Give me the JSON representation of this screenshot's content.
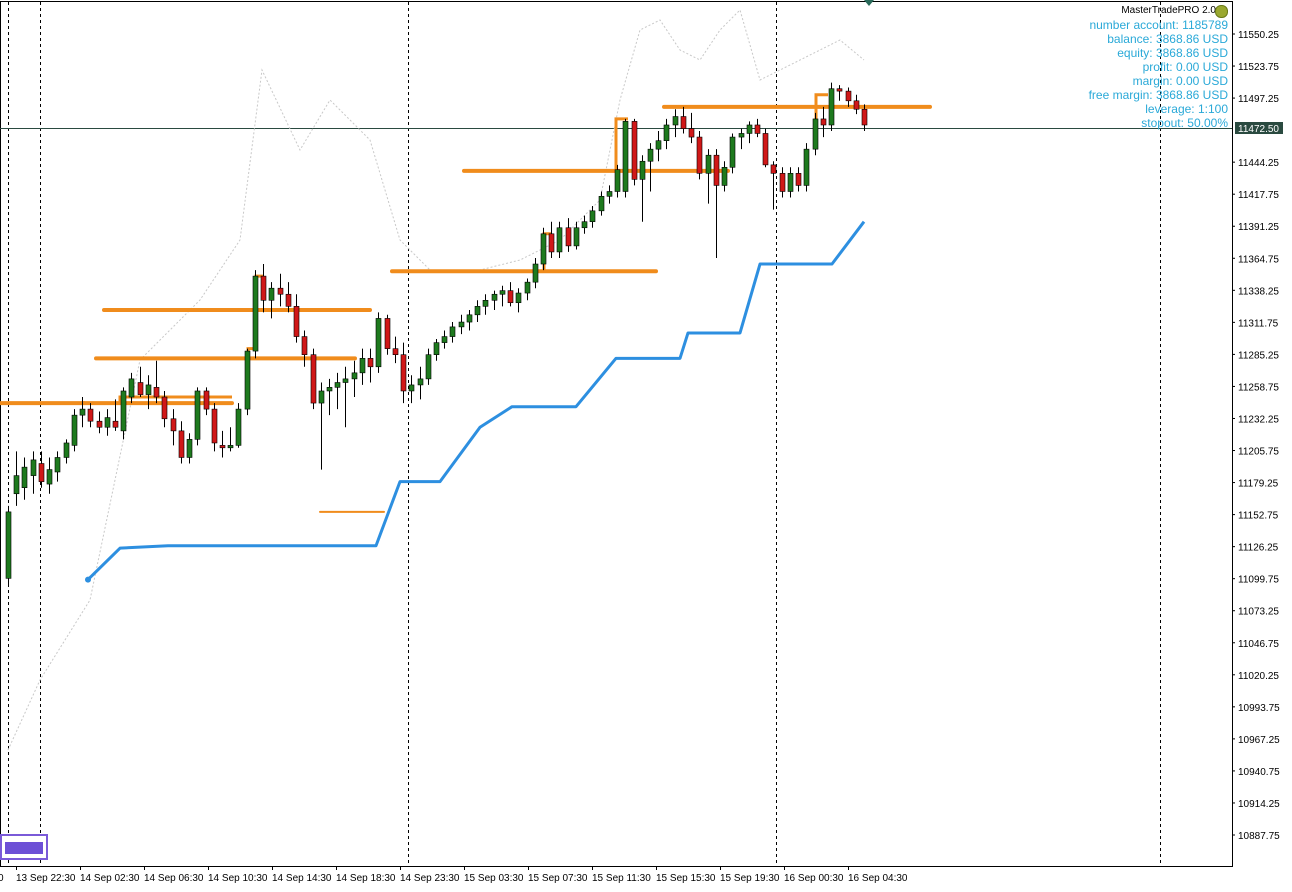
{
  "chart_data": {
    "type": "candlestick",
    "instrument_price": "11472.50",
    "current_price": 11472.5,
    "ylim": [
      10865,
      11570
    ],
    "price_labels": [
      "11550.25",
      "11523.75",
      "11497.25",
      "11472.50",
      "11444.25",
      "11417.75",
      "11391.25",
      "11364.75",
      "11338.25",
      "11311.75",
      "11285.25",
      "11258.75",
      "11232.25",
      "11205.75",
      "11179.25",
      "11152.75",
      "11126.25",
      "11099.75",
      "11073.25",
      "11046.75",
      "11020.25",
      "10993.75",
      "10967.25",
      "10940.75",
      "10914.25",
      "10887.75"
    ],
    "time_labels": [
      "13 Sep 22:30",
      "14 Sep 02:30",
      "14 Sep 06:30",
      "14 Sep 10:30",
      "14 Sep 14:30",
      "14 Sep 18:30",
      "14 Sep 23:30",
      "15 Sep 03:30",
      "15 Sep 07:30",
      "15 Sep 11:30",
      "15 Sep 15:30",
      "15 Sep 19:30",
      "16 Sep 00:30",
      "16 Sep 04:30"
    ],
    "left_edge_label": "0",
    "day_separators": [
      "13 Sep",
      "14 Sep",
      "15 Sep",
      "16 Sep"
    ],
    "candles": [
      {
        "o": 11100,
        "h": 11160,
        "l": 11095,
        "c": 11155
      },
      {
        "o": 11170,
        "h": 11205,
        "l": 11160,
        "c": 11185
      },
      {
        "o": 11175,
        "h": 11200,
        "l": 11165,
        "c": 11192
      },
      {
        "o": 11185,
        "h": 11205,
        "l": 11170,
        "c": 11198
      },
      {
        "o": 11195,
        "h": 11205,
        "l": 11175,
        "c": 11180
      },
      {
        "o": 11178,
        "h": 11200,
        "l": 11170,
        "c": 11190
      },
      {
        "o": 11188,
        "h": 11205,
        "l": 11180,
        "c": 11200
      },
      {
        "o": 11200,
        "h": 11215,
        "l": 11195,
        "c": 11212
      },
      {
        "o": 11210,
        "h": 11240,
        "l": 11205,
        "c": 11235
      },
      {
        "o": 11235,
        "h": 11250,
        "l": 11225,
        "c": 11240
      },
      {
        "o": 11240,
        "h": 11245,
        "l": 11225,
        "c": 11230
      },
      {
        "o": 11230,
        "h": 11238,
        "l": 11220,
        "c": 11225
      },
      {
        "o": 11225,
        "h": 11240,
        "l": 11218,
        "c": 11233
      },
      {
        "o": 11230,
        "h": 11248,
        "l": 11222,
        "c": 11225
      },
      {
        "o": 11222,
        "h": 11258,
        "l": 11215,
        "c": 11255
      },
      {
        "o": 11250,
        "h": 11270,
        "l": 11245,
        "c": 11265
      },
      {
        "o": 11262,
        "h": 11275,
        "l": 11250,
        "c": 11252
      },
      {
        "o": 11252,
        "h": 11268,
        "l": 11240,
        "c": 11260
      },
      {
        "o": 11258,
        "h": 11280,
        "l": 11245,
        "c": 11250
      },
      {
        "o": 11250,
        "h": 11255,
        "l": 11225,
        "c": 11232
      },
      {
        "o": 11232,
        "h": 11240,
        "l": 11210,
        "c": 11222
      },
      {
        "o": 11222,
        "h": 11230,
        "l": 11195,
        "c": 11200
      },
      {
        "o": 11200,
        "h": 11220,
        "l": 11195,
        "c": 11215
      },
      {
        "o": 11215,
        "h": 11258,
        "l": 11210,
        "c": 11255
      },
      {
        "o": 11255,
        "h": 11258,
        "l": 11235,
        "c": 11240
      },
      {
        "o": 11240,
        "h": 11245,
        "l": 11205,
        "c": 11212
      },
      {
        "o": 11210,
        "h": 11222,
        "l": 11200,
        "c": 11208
      },
      {
        "o": 11208,
        "h": 11225,
        "l": 11205,
        "c": 11210
      },
      {
        "o": 11210,
        "h": 11245,
        "l": 11208,
        "c": 11240
      },
      {
        "o": 11240,
        "h": 11290,
        "l": 11235,
        "c": 11288
      },
      {
        "o": 11288,
        "h": 11355,
        "l": 11282,
        "c": 11350
      },
      {
        "o": 11350,
        "h": 11360,
        "l": 11320,
        "c": 11330
      },
      {
        "o": 11330,
        "h": 11345,
        "l": 11315,
        "c": 11340
      },
      {
        "o": 11340,
        "h": 11352,
        "l": 11325,
        "c": 11335
      },
      {
        "o": 11335,
        "h": 11345,
        "l": 11320,
        "c": 11325
      },
      {
        "o": 11325,
        "h": 11335,
        "l": 11295,
        "c": 11300
      },
      {
        "o": 11300,
        "h": 11305,
        "l": 11275,
        "c": 11285
      },
      {
        "o": 11285,
        "h": 11290,
        "l": 11240,
        "c": 11245
      },
      {
        "o": 11245,
        "h": 11262,
        "l": 11190,
        "c": 11255
      },
      {
        "o": 11255,
        "h": 11265,
        "l": 11235,
        "c": 11258
      },
      {
        "o": 11258,
        "h": 11270,
        "l": 11240,
        "c": 11262
      },
      {
        "o": 11262,
        "h": 11275,
        "l": 11225,
        "c": 11265
      },
      {
        "o": 11265,
        "h": 11280,
        "l": 11250,
        "c": 11270
      },
      {
        "o": 11270,
        "h": 11290,
        "l": 11260,
        "c": 11282
      },
      {
        "o": 11282,
        "h": 11290,
        "l": 11262,
        "c": 11275
      },
      {
        "o": 11275,
        "h": 11320,
        "l": 11270,
        "c": 11315
      },
      {
        "o": 11315,
        "h": 11318,
        "l": 11285,
        "c": 11290
      },
      {
        "o": 11290,
        "h": 11300,
        "l": 11278,
        "c": 11285
      },
      {
        "o": 11285,
        "h": 11295,
        "l": 11245,
        "c": 11255
      },
      {
        "o": 11255,
        "h": 11268,
        "l": 11245,
        "c": 11260
      },
      {
        "o": 11260,
        "h": 11275,
        "l": 11248,
        "c": 11265
      },
      {
        "o": 11265,
        "h": 11290,
        "l": 11260,
        "c": 11285
      },
      {
        "o": 11285,
        "h": 11298,
        "l": 11280,
        "c": 11295
      },
      {
        "o": 11295,
        "h": 11305,
        "l": 11290,
        "c": 11300
      },
      {
        "o": 11300,
        "h": 11312,
        "l": 11295,
        "c": 11308
      },
      {
        "o": 11308,
        "h": 11318,
        "l": 11302,
        "c": 11312
      },
      {
        "o": 11312,
        "h": 11322,
        "l": 11305,
        "c": 11318
      },
      {
        "o": 11318,
        "h": 11330,
        "l": 11312,
        "c": 11325
      },
      {
        "o": 11325,
        "h": 11335,
        "l": 11318,
        "c": 11330
      },
      {
        "o": 11330,
        "h": 11338,
        "l": 11322,
        "c": 11335
      },
      {
        "o": 11335,
        "h": 11342,
        "l": 11325,
        "c": 11338
      },
      {
        "o": 11338,
        "h": 11345,
        "l": 11325,
        "c": 11328
      },
      {
        "o": 11328,
        "h": 11340,
        "l": 11320,
        "c": 11336
      },
      {
        "o": 11336,
        "h": 11348,
        "l": 11330,
        "c": 11345
      },
      {
        "o": 11345,
        "h": 11365,
        "l": 11340,
        "c": 11360
      },
      {
        "o": 11360,
        "h": 11390,
        "l": 11355,
        "c": 11385
      },
      {
        "o": 11385,
        "h": 11395,
        "l": 11365,
        "c": 11370
      },
      {
        "o": 11370,
        "h": 11395,
        "l": 11365,
        "c": 11390
      },
      {
        "o": 11390,
        "h": 11398,
        "l": 11370,
        "c": 11375
      },
      {
        "o": 11375,
        "h": 11395,
        "l": 11372,
        "c": 11390
      },
      {
        "o": 11390,
        "h": 11400,
        "l": 11385,
        "c": 11395
      },
      {
        "o": 11395,
        "h": 11408,
        "l": 11390,
        "c": 11404
      },
      {
        "o": 11404,
        "h": 11420,
        "l": 11400,
        "c": 11416
      },
      {
        "o": 11416,
        "h": 11425,
        "l": 11410,
        "c": 11420
      },
      {
        "o": 11420,
        "h": 11442,
        "l": 11415,
        "c": 11438
      },
      {
        "o": 11420,
        "h": 11480,
        "l": 11415,
        "c": 11478
      },
      {
        "o": 11478,
        "h": 11480,
        "l": 11425,
        "c": 11430
      },
      {
        "o": 11430,
        "h": 11450,
        "l": 11395,
        "c": 11445
      },
      {
        "o": 11445,
        "h": 11460,
        "l": 11420,
        "c": 11455
      },
      {
        "o": 11455,
        "h": 11470,
        "l": 11445,
        "c": 11462
      },
      {
        "o": 11462,
        "h": 11480,
        "l": 11455,
        "c": 11475
      },
      {
        "o": 11475,
        "h": 11488,
        "l": 11465,
        "c": 11482
      },
      {
        "o": 11482,
        "h": 11490,
        "l": 11468,
        "c": 11472
      },
      {
        "o": 11472,
        "h": 11485,
        "l": 11460,
        "c": 11465
      },
      {
        "o": 11465,
        "h": 11470,
        "l": 11430,
        "c": 11435
      },
      {
        "o": 11435,
        "h": 11455,
        "l": 11410,
        "c": 11450
      },
      {
        "o": 11450,
        "h": 11455,
        "l": 11365,
        "c": 11425
      },
      {
        "o": 11425,
        "h": 11445,
        "l": 11420,
        "c": 11440
      },
      {
        "o": 11440,
        "h": 11468,
        "l": 11435,
        "c": 11465
      },
      {
        "o": 11465,
        "h": 11472,
        "l": 11455,
        "c": 11468
      },
      {
        "o": 11468,
        "h": 11478,
        "l": 11460,
        "c": 11475
      },
      {
        "o": 11475,
        "h": 11480,
        "l": 11465,
        "c": 11468
      },
      {
        "o": 11468,
        "h": 11472,
        "l": 11440,
        "c": 11442
      },
      {
        "o": 11442,
        "h": 11445,
        "l": 11405,
        "c": 11435
      },
      {
        "o": 11435,
        "h": 11440,
        "l": 11415,
        "c": 11420
      },
      {
        "o": 11420,
        "h": 11440,
        "l": 11415,
        "c": 11435
      },
      {
        "o": 11435,
        "h": 11440,
        "l": 11420,
        "c": 11425
      },
      {
        "o": 11425,
        "h": 11460,
        "l": 11420,
        "c": 11455
      },
      {
        "o": 11455,
        "h": 11485,
        "l": 11450,
        "c": 11480
      },
      {
        "o": 11480,
        "h": 11490,
        "l": 11465,
        "c": 11475
      },
      {
        "o": 11475,
        "h": 11510,
        "l": 11470,
        "c": 11505
      },
      {
        "o": 11505,
        "h": 11508,
        "l": 11495,
        "c": 11503
      },
      {
        "o": 11503,
        "h": 11506,
        "l": 11490,
        "c": 11495
      },
      {
        "o": 11495,
        "h": 11500,
        "l": 11484,
        "c": 11488
      },
      {
        "o": 11488,
        "h": 11492,
        "l": 11470,
        "c": 11475
      }
    ],
    "orange_levels": [
      {
        "x0": 0,
        "x1": 84,
        "price": 11245
      },
      {
        "x0": 84,
        "x1": 232,
        "price": 11245
      },
      {
        "x0": 96,
        "x1": 355,
        "price": 11282
      },
      {
        "x0": 104,
        "x1": 370,
        "price": 11322
      },
      {
        "x0": 392,
        "x1": 656,
        "price": 11354
      },
      {
        "x0": 464,
        "x1": 728,
        "price": 11437
      },
      {
        "x0": 664,
        "x1": 930,
        "price": 11490
      },
      {
        "x0": 320,
        "x1": 384,
        "price": 11155
      }
    ],
    "orange_steps": [
      [
        [
          0,
          11245
        ],
        [
          120,
          11245
        ],
        [
          120,
          11250
        ],
        [
          232,
          11250
        ]
      ],
      [
        [
          248,
          11245
        ],
        [
          248,
          11290
        ],
        [
          256,
          11290
        ],
        [
          256,
          11350
        ],
        [
          264,
          11350
        ]
      ],
      [
        [
          544,
          11354
        ],
        [
          544,
          11385
        ],
        [
          552,
          11385
        ]
      ],
      [
        [
          616,
          11437
        ],
        [
          616,
          11480
        ],
        [
          628,
          11480
        ]
      ],
      [
        [
          816,
          11475
        ],
        [
          816,
          11500
        ],
        [
          828,
          11500
        ]
      ]
    ],
    "blue_line": [
      [
        88,
        11099
      ],
      [
        120,
        11125
      ],
      [
        168,
        11127
      ],
      [
        376,
        11127
      ],
      [
        400,
        11180
      ],
      [
        440,
        11180
      ],
      [
        480,
        11225
      ],
      [
        512,
        11242
      ],
      [
        576,
        11242
      ],
      [
        616,
        11282
      ],
      [
        680,
        11282
      ],
      [
        688,
        11303
      ],
      [
        740,
        11303
      ],
      [
        760,
        11360
      ],
      [
        832,
        11360
      ],
      [
        864,
        11395
      ]
    ]
  },
  "ea_panel": {
    "title": "MasterTradePRO 2.0",
    "lines": [
      "number account: 1185789",
      "balance: 3868.86 USD",
      "equity: 3868.86 USD",
      "profit: 0.00 USD",
      "margin: 0.00 USD",
      "free margin: 3868.86 USD",
      "leverage: 1:100",
      "stopout: 50.00%"
    ]
  },
  "colors": {
    "bull": "#1e7a1e",
    "bear": "#d01818",
    "orange": "#f08c1c",
    "blue": "#2d8fe0",
    "grid": "#000000",
    "axis_text": "#000000",
    "price_tag_bg": "#2a4a40",
    "info_text": "#2aa9d8"
  }
}
